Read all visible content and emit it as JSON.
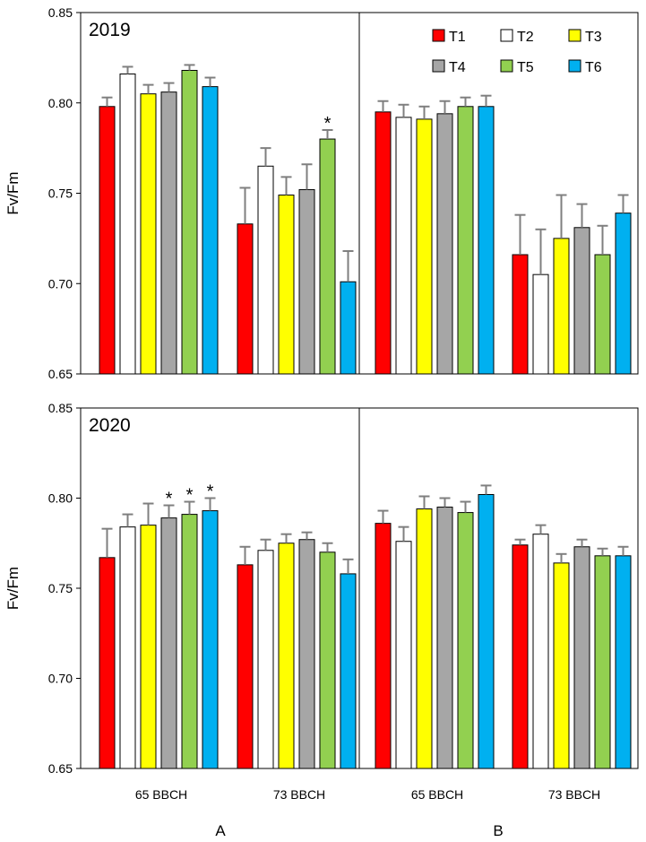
{
  "chart_data": {
    "type": "bar",
    "ylabel": "Fv/Fm",
    "ylim": [
      0.65,
      0.85
    ],
    "yticks": [
      "0.65",
      "0.70",
      "0.75",
      "0.80",
      "0.85"
    ],
    "categories": [
      "65 BBCH",
      "73 BBCH"
    ],
    "panel_labels": [
      "A",
      "B"
    ],
    "series": [
      {
        "name": "T1",
        "color": "#ff0000"
      },
      {
        "name": "T2",
        "color": "#ffffff"
      },
      {
        "name": "T3",
        "color": "#ffff00"
      },
      {
        "name": "T4",
        "color": "#a6a6a6"
      },
      {
        "name": "T5",
        "color": "#92d050"
      },
      {
        "name": "T6",
        "color": "#00b0f0"
      }
    ],
    "rows": [
      {
        "year": "2019",
        "panels": [
          {
            "groups": [
              {
                "values": [
                  0.798,
                  0.816,
                  0.805,
                  0.806,
                  0.818,
                  0.809
                ],
                "errors": [
                  0.005,
                  0.004,
                  0.005,
                  0.005,
                  0.003,
                  0.005
                ],
                "stars": [
                  "",
                  "",
                  "",
                  "",
                  "",
                  ""
                ]
              },
              {
                "values": [
                  0.733,
                  0.765,
                  0.749,
                  0.752,
                  0.78,
                  0.701
                ],
                "errors": [
                  0.02,
                  0.01,
                  0.01,
                  0.014,
                  0.005,
                  0.017
                ],
                "stars": [
                  "",
                  "",
                  "",
                  "",
                  "*",
                  ""
                ]
              }
            ]
          },
          {
            "groups": [
              {
                "values": [
                  0.795,
                  0.792,
                  0.791,
                  0.794,
                  0.798,
                  0.798
                ],
                "errors": [
                  0.006,
                  0.007,
                  0.007,
                  0.007,
                  0.005,
                  0.006
                ],
                "stars": [
                  "",
                  "",
                  "",
                  "",
                  "",
                  ""
                ]
              },
              {
                "values": [
                  0.716,
                  0.705,
                  0.725,
                  0.731,
                  0.716,
                  0.739
                ],
                "errors": [
                  0.022,
                  0.025,
                  0.024,
                  0.013,
                  0.016,
                  0.01
                ],
                "stars": [
                  "",
                  "",
                  "",
                  "",
                  "",
                  ""
                ]
              }
            ]
          }
        ]
      },
      {
        "year": "2020",
        "panels": [
          {
            "groups": [
              {
                "values": [
                  0.767,
                  0.784,
                  0.785,
                  0.789,
                  0.791,
                  0.793
                ],
                "errors": [
                  0.016,
                  0.007,
                  0.012,
                  0.007,
                  0.007,
                  0.007
                ],
                "stars": [
                  "",
                  "",
                  "",
                  "*",
                  "*",
                  "*"
                ]
              },
              {
                "values": [
                  0.763,
                  0.771,
                  0.775,
                  0.777,
                  0.77,
                  0.758
                ],
                "errors": [
                  0.01,
                  0.006,
                  0.005,
                  0.004,
                  0.005,
                  0.008
                ],
                "stars": [
                  "",
                  "",
                  "",
                  "",
                  "",
                  ""
                ]
              }
            ]
          },
          {
            "groups": [
              {
                "values": [
                  0.786,
                  0.776,
                  0.794,
                  0.795,
                  0.792,
                  0.802
                ],
                "errors": [
                  0.007,
                  0.008,
                  0.007,
                  0.005,
                  0.006,
                  0.005
                ],
                "stars": [
                  "",
                  "",
                  "",
                  "",
                  "",
                  ""
                ]
              },
              {
                "values": [
                  0.774,
                  0.78,
                  0.764,
                  0.773,
                  0.768,
                  0.768
                ],
                "errors": [
                  0.003,
                  0.005,
                  0.005,
                  0.004,
                  0.004,
                  0.005
                ],
                "stars": [
                  "",
                  "",
                  "",
                  "",
                  "",
                  ""
                ]
              }
            ]
          }
        ]
      }
    ]
  }
}
